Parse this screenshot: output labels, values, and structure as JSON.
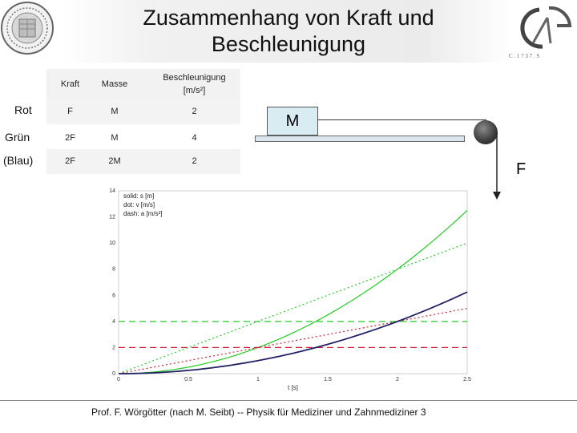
{
  "slide": {
    "title_line1": "Zusammenhang von Kraft und",
    "title_line2": "Beschleunigung",
    "footer": "Prof. F. Wörgötter (nach M. Seibt) -- Physik für Mediziner und Zahnmediziner  3"
  },
  "table": {
    "headers": [
      "Kraft",
      "Masse",
      "Beschleunigung",
      "[m/s²]"
    ],
    "rows": [
      {
        "label": "Rot",
        "kraft": "F",
        "masse": "M",
        "a": "2"
      },
      {
        "label": "Grün",
        "kraft": "2F",
        "masse": "M",
        "a": "4"
      },
      {
        "label": "(Blau)",
        "kraft": "2F",
        "masse": "2M",
        "a": "2"
      }
    ]
  },
  "diagram": {
    "mass_label": "M",
    "force_label": "F"
  },
  "colors": {
    "green": "#22cc22",
    "red": "#cc2233",
    "blue": "#222266"
  },
  "chart_data": {
    "type": "line",
    "xlabel": "t [s]",
    "xlim": [
      0,
      2.5
    ],
    "ylim": [
      0,
      14
    ],
    "xticks": [
      "0",
      "0.5",
      "1",
      "1.5",
      "2",
      "2.5"
    ],
    "yticks": [
      "0",
      "2",
      "4",
      "6",
      "8",
      "10",
      "12",
      "14"
    ],
    "legend": [
      "solid:  s [m]",
      "dot:    v [m/s]",
      "dash:  a [m/s²]"
    ],
    "series": [
      {
        "color": "green",
        "style": "solid",
        "x": [
          0,
          0.5,
          1,
          1.5,
          2,
          2.5
        ],
        "y": [
          0,
          0.5,
          2,
          4.5,
          8,
          12.5
        ]
      },
      {
        "color": "green",
        "style": "dot",
        "x": [
          0,
          2.5
        ],
        "y": [
          0,
          10
        ]
      },
      {
        "color": "green",
        "style": "dash",
        "x": [
          0,
          2.5
        ],
        "y": [
          4,
          4
        ]
      },
      {
        "color": "red",
        "style": "solid",
        "x": [
          0,
          0.5,
          1,
          1.5,
          2,
          2.5
        ],
        "y": [
          0,
          0.25,
          1,
          2.25,
          4,
          6.25
        ]
      },
      {
        "color": "red",
        "style": "dot",
        "x": [
          0,
          2.5
        ],
        "y": [
          0,
          5
        ]
      },
      {
        "color": "red",
        "style": "dash",
        "x": [
          0,
          2.5
        ],
        "y": [
          2,
          2
        ]
      },
      {
        "color": "blue",
        "style": "solid",
        "x": [
          0,
          0.5,
          1,
          1.5,
          2,
          2.5
        ],
        "y": [
          0,
          0.25,
          1,
          2.25,
          4,
          6.25
        ]
      }
    ]
  }
}
